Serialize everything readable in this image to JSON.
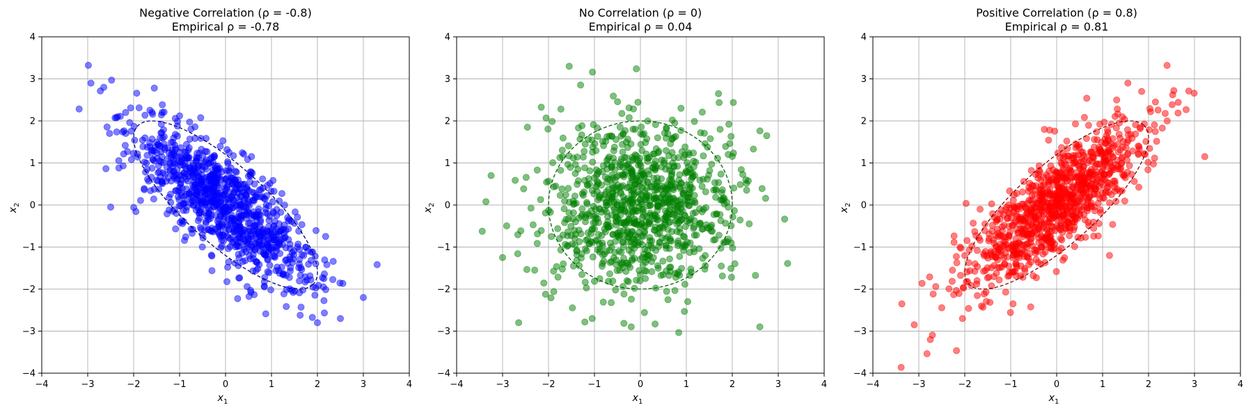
{
  "figure": {
    "background": "#ffffff"
  },
  "chart_data": [
    {
      "type": "scatter",
      "title": "Negative Correlation (ρ = -0.8)",
      "subtitle": "Empirical ρ = -0.78",
      "xlabel": "x",
      "xlabel_sub": "1",
      "ylabel": "x",
      "ylabel_sub": "2",
      "xlim": [
        -4,
        4
      ],
      "ylim": [
        -4,
        4
      ],
      "xticks": [
        "−4",
        "−3",
        "−2",
        "−1",
        "0",
        "1",
        "2",
        "3",
        "4"
      ],
      "yticks": [
        "−4",
        "−3",
        "−2",
        "−1",
        "0",
        "1",
        "2",
        "3",
        "4"
      ],
      "grid": true,
      "color": "#0000ff",
      "alpha": 0.5,
      "n_points": 1000,
      "rho": -0.8,
      "sample_points": [
        [
          -2.65,
          2.8
        ],
        [
          -1.55,
          2.78
        ],
        [
          -2.5,
          -0.05
        ],
        [
          3.3,
          -1.42
        ],
        [
          3.0,
          -2.2
        ],
        [
          2.0,
          -2.8
        ],
        [
          2.5,
          -2.7
        ],
        [
          -2.35,
          2.1
        ],
        [
          -1.0,
          2.12
        ]
      ],
      "ellipse": {
        "center": [
          0,
          0
        ],
        "rho": -0.8,
        "scale": 2,
        "style": "dashed",
        "color": "#000080"
      }
    },
    {
      "type": "scatter",
      "title": "No Correlation (ρ = 0)",
      "subtitle": "Empirical ρ = 0.04",
      "xlabel": "x",
      "xlabel_sub": "1",
      "ylabel": "x",
      "ylabel_sub": "2",
      "xlim": [
        -4,
        4
      ],
      "ylim": [
        -4,
        4
      ],
      "xticks": [
        "−4",
        "−3",
        "−2",
        "−1",
        "0",
        "1",
        "2",
        "3",
        "4"
      ],
      "yticks": [
        "−4",
        "−3",
        "−2",
        "−1",
        "0",
        "1",
        "2",
        "3",
        "4"
      ],
      "grid": true,
      "color": "#008000",
      "alpha": 0.5,
      "n_points": 1000,
      "rho": 0,
      "sample_points": [
        [
          -1.55,
          3.3
        ],
        [
          -3.25,
          0.7
        ],
        [
          -3.0,
          -1.25
        ],
        [
          -2.65,
          -2.8
        ],
        [
          2.6,
          -2.9
        ],
        [
          2.75,
          1.65
        ],
        [
          -0.2,
          -2.9
        ],
        [
          -1.05,
          -2.7
        ],
        [
          1.7,
          2.65
        ]
      ],
      "ellipse": {
        "center": [
          0,
          0
        ],
        "rho": 0,
        "scale": 2,
        "style": "dashed",
        "color": "#006400"
      }
    },
    {
      "type": "scatter",
      "title": "Positive Correlation (ρ = 0.8)",
      "subtitle": "Empirical ρ = 0.81",
      "xlabel": "x",
      "xlabel_sub": "1",
      "ylabel": "x",
      "ylabel_sub": "2",
      "xlim": [
        -4,
        4
      ],
      "ylim": [
        -4,
        4
      ],
      "xticks": [
        "−4",
        "−3",
        "−2",
        "−1",
        "0",
        "1",
        "2",
        "3",
        "4"
      ],
      "yticks": [
        "−4",
        "−3",
        "−2",
        "−1",
        "0",
        "1",
        "2",
        "3",
        "4"
      ],
      "grid": true,
      "color": "#ff0000",
      "alpha": 0.5,
      "n_points": 1000,
      "rho": 0.8,
      "sample_points": [
        [
          -3.1,
          -2.85
        ],
        [
          -2.75,
          -3.2
        ],
        [
          2.55,
          2.72
        ],
        [
          1.55,
          2.9
        ],
        [
          1.85,
          2.7
        ],
        [
          2.15,
          2.45
        ],
        [
          -2.05,
          -2.7
        ],
        [
          -0.95,
          -2.35
        ],
        [
          1.15,
          -1.2
        ]
      ],
      "ellipse": {
        "center": [
          0,
          0
        ],
        "rho": 0.8,
        "scale": 2,
        "style": "dashed",
        "color": "#8b0000"
      }
    }
  ]
}
